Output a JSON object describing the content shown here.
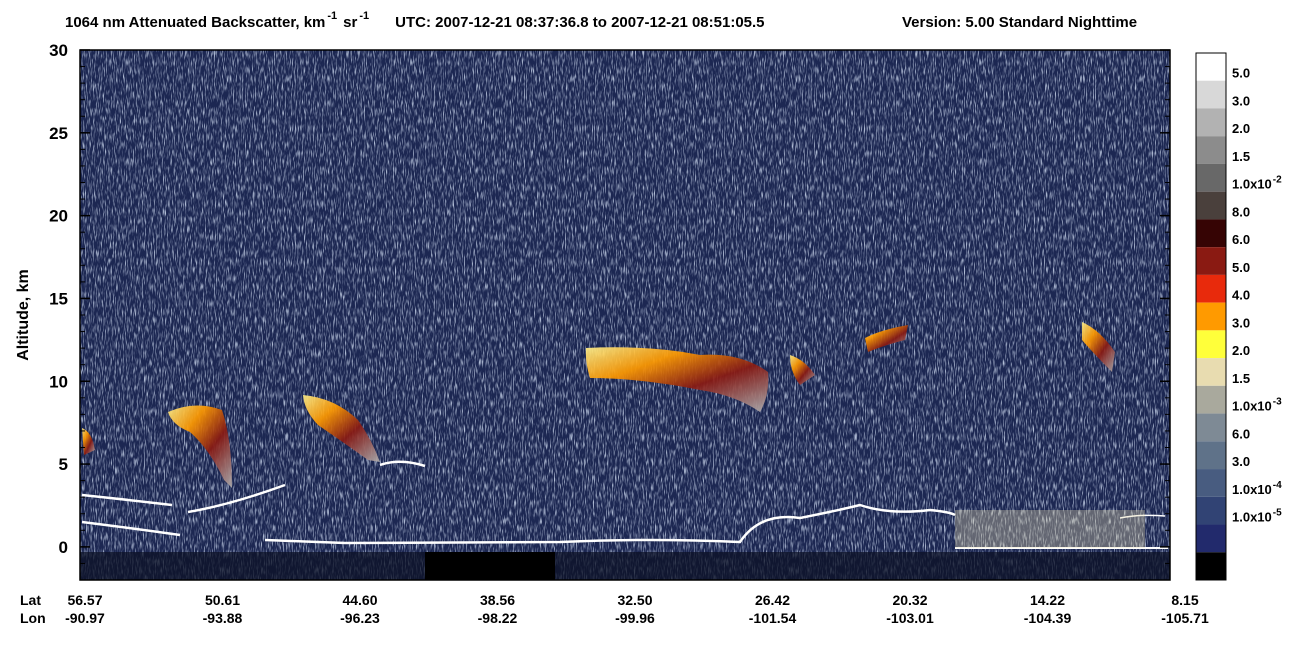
{
  "chart_data": {
    "type": "lidar-curtain",
    "title_parts": [
      "1064 nm Attenuated Backscatter, km",
      "-1",
      "sr",
      "-1"
    ],
    "utc": "UTC:  2007-12-21 08:37:36.8  to  2007-12-21 08:51:05.5",
    "version": "Version: 5.00  Standard  Nighttime",
    "ylabel": "Altitude, km",
    "ylim": [
      -2,
      30
    ],
    "yticks": [
      0,
      5,
      10,
      15,
      20,
      25,
      30
    ],
    "x_row_labels": [
      "Lat",
      "Lon"
    ],
    "lat_labels": [
      "56.57",
      "50.61",
      "44.60",
      "38.56",
      "32.50",
      "26.42",
      "20.32",
      "14.22",
      "8.15"
    ],
    "lon_labels": [
      "-90.97",
      "-93.88",
      "-96.23",
      "-98.22",
      "-99.96",
      "-101.54",
      "-103.01",
      "-104.39",
      "-105.71"
    ],
    "colorbar_colors": [
      "#ffffff",
      "#d8d8d8",
      "#b2b2b2",
      "#8c8c8c",
      "#686868",
      "#4a403c",
      "#360404",
      "#8a1a12",
      "#e82a0c",
      "#ff9a00",
      "#ffff3a",
      "#e8dcb0",
      "#a9a99d",
      "#7e8a95",
      "#5f7289",
      "#485c80",
      "#314374",
      "#222a6c",
      "#000000"
    ],
    "colorbar_labels": [
      {
        "label": "5.0"
      },
      {
        "label": "3.0"
      },
      {
        "label": "2.0"
      },
      {
        "label": "1.5"
      },
      {
        "label": "1.0x10",
        "exponent": "-2"
      },
      {
        "label": "8.0"
      },
      {
        "label": "6.0"
      },
      {
        "label": "5.0"
      },
      {
        "label": "4.0"
      },
      {
        "label": "3.0"
      },
      {
        "label": "2.0"
      },
      {
        "label": "1.5"
      },
      {
        "label": "1.0x10",
        "exponent": "-3"
      },
      {
        "label": "6.0"
      },
      {
        "label": "3.0"
      },
      {
        "label": "1.0x10",
        "exponent": "-4"
      },
      {
        "label": "1.0x10",
        "exponent": "-5"
      }
    ]
  }
}
